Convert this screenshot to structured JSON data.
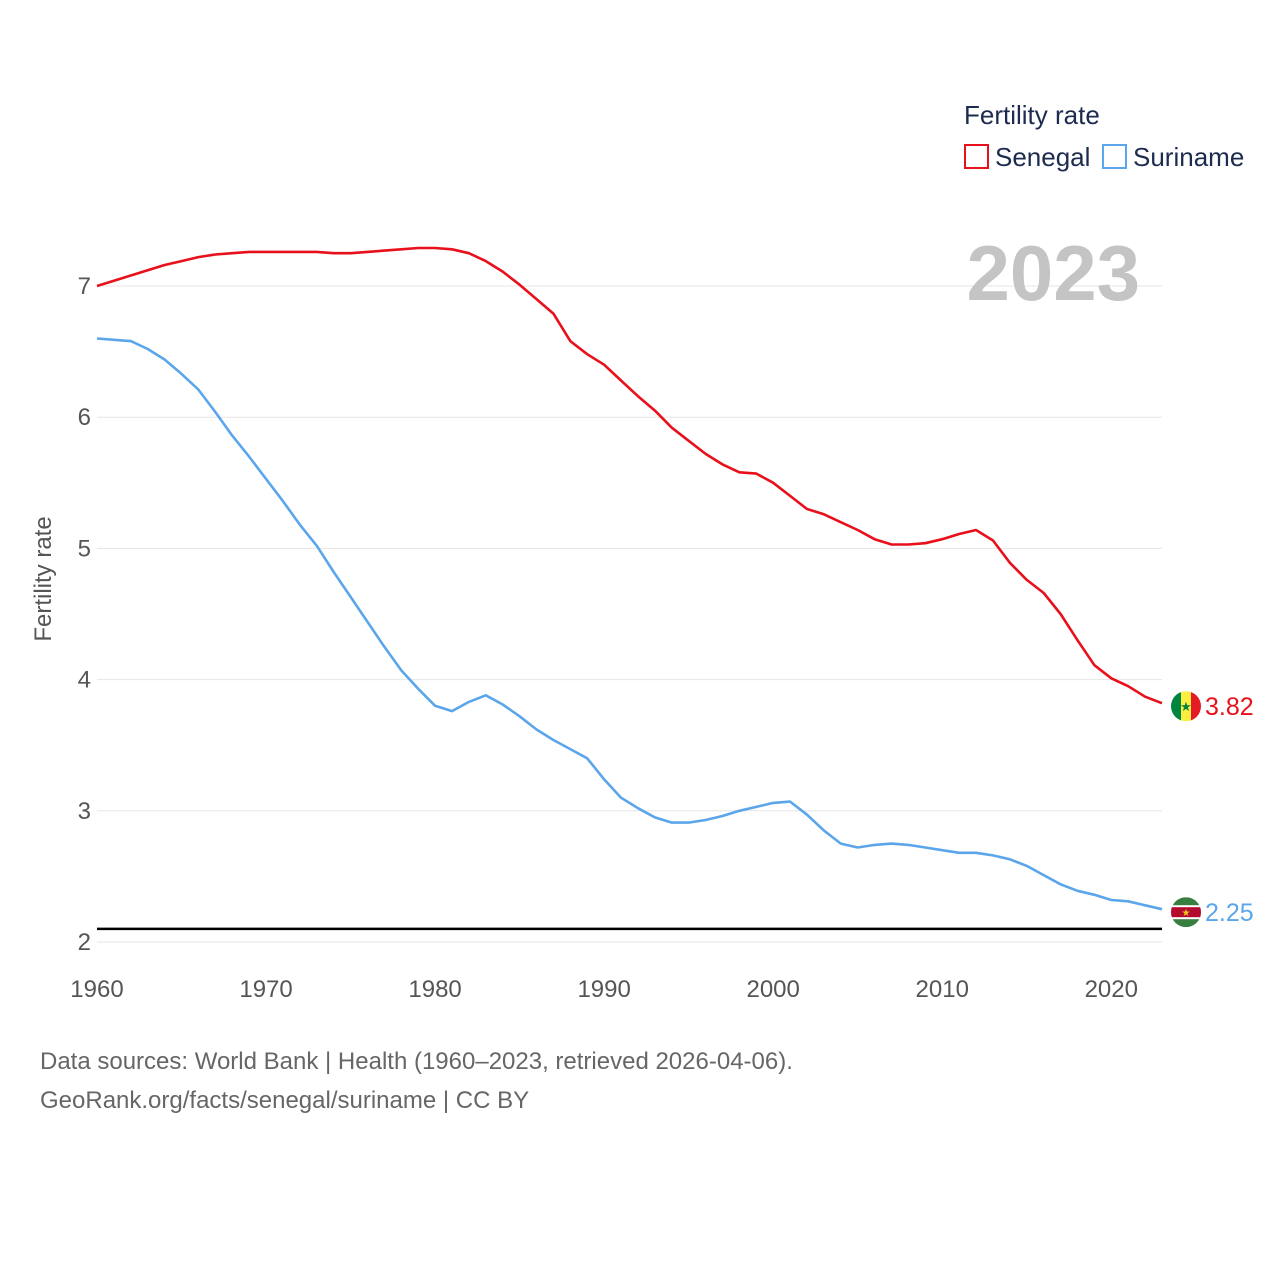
{
  "chart_data": {
    "type": "line",
    "title": "",
    "xlabel": "",
    "ylabel": "Fertility rate",
    "xlim": [
      1960,
      2023
    ],
    "ylim": [
      2,
      7.5
    ],
    "x_ticks": [
      1960,
      1970,
      1980,
      1990,
      2000,
      2010,
      2020
    ],
    "y_ticks": [
      2,
      3,
      4,
      5,
      6,
      7
    ],
    "legend": {
      "title": "Fertility rate",
      "position": "top-right"
    },
    "year_label": "2023",
    "reference_line": {
      "value": 2.1,
      "color": "#000000"
    },
    "x": [
      1960,
      1961,
      1962,
      1963,
      1964,
      1965,
      1966,
      1967,
      1968,
      1969,
      1970,
      1971,
      1972,
      1973,
      1974,
      1975,
      1976,
      1977,
      1978,
      1979,
      1980,
      1981,
      1982,
      1983,
      1984,
      1985,
      1986,
      1987,
      1988,
      1989,
      1990,
      1991,
      1992,
      1993,
      1994,
      1995,
      1996,
      1997,
      1998,
      1999,
      2000,
      2001,
      2002,
      2003,
      2004,
      2005,
      2006,
      2007,
      2008,
      2009,
      2010,
      2011,
      2012,
      2013,
      2014,
      2015,
      2016,
      2017,
      2018,
      2019,
      2020,
      2021,
      2022,
      2023
    ],
    "series": [
      {
        "name": "Senegal",
        "color": "#e8101b",
        "end_label": "3.82",
        "flag": "senegal-flag",
        "values": [
          7.0,
          7.04,
          7.08,
          7.12,
          7.16,
          7.19,
          7.22,
          7.24,
          7.25,
          7.26,
          7.26,
          7.26,
          7.26,
          7.26,
          7.25,
          7.25,
          7.26,
          7.27,
          7.28,
          7.29,
          7.29,
          7.28,
          7.25,
          7.19,
          7.11,
          7.01,
          6.9,
          6.79,
          6.58,
          6.48,
          6.4,
          6.28,
          6.16,
          6.05,
          5.92,
          5.82,
          5.72,
          5.64,
          5.58,
          5.57,
          5.5,
          5.4,
          5.3,
          5.26,
          5.2,
          5.14,
          5.07,
          5.03,
          5.03,
          5.04,
          5.07,
          5.11,
          5.14,
          5.06,
          4.89,
          4.76,
          4.66,
          4.5,
          4.3,
          4.11,
          4.01,
          3.95,
          3.87,
          3.82
        ]
      },
      {
        "name": "Suriname",
        "color": "#5ba6ea",
        "end_label": "2.25",
        "flag": "suriname-flag",
        "values": [
          6.6,
          6.59,
          6.58,
          6.52,
          6.44,
          6.33,
          6.21,
          6.04,
          5.86,
          5.7,
          5.53,
          5.36,
          5.18,
          5.02,
          4.82,
          4.63,
          4.44,
          4.25,
          4.07,
          3.93,
          3.8,
          3.76,
          3.83,
          3.88,
          3.81,
          3.72,
          3.62,
          3.54,
          3.47,
          3.4,
          3.24,
          3.1,
          3.02,
          2.95,
          2.91,
          2.91,
          2.93,
          2.96,
          3.0,
          3.03,
          3.06,
          3.07,
          2.97,
          2.85,
          2.75,
          2.72,
          2.74,
          2.75,
          2.74,
          2.72,
          2.7,
          2.68,
          2.68,
          2.66,
          2.63,
          2.58,
          2.51,
          2.44,
          2.39,
          2.36,
          2.32,
          2.31,
          2.28,
          2.25
        ]
      }
    ]
  },
  "footer": {
    "line1": "Data sources: World Bank | Health (1960–2023, retrieved 2026-04-06).",
    "line2": "GeoRank.org/facts/senegal/suriname | CC BY"
  }
}
